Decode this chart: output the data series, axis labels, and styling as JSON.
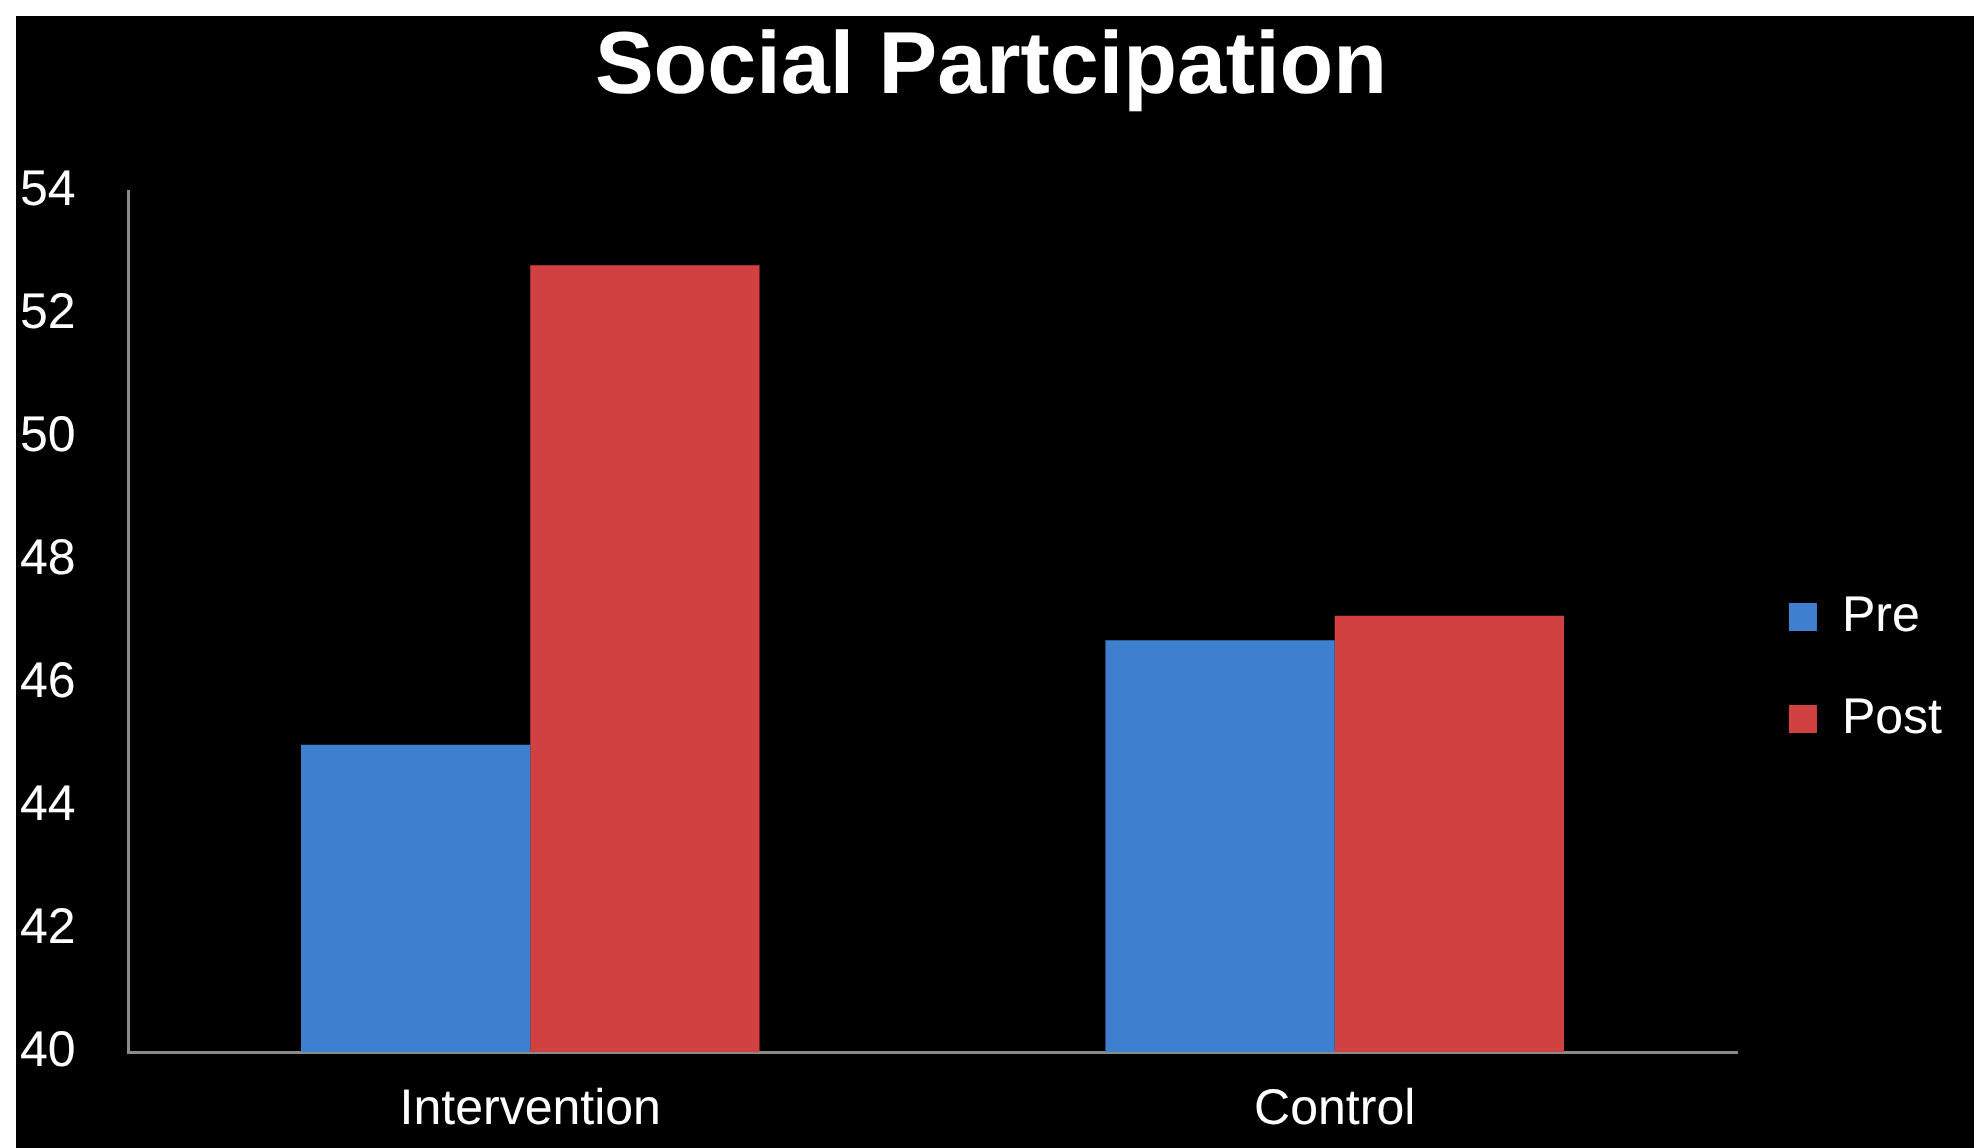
{
  "chart_data": {
    "type": "bar",
    "title": "Social Partcipation",
    "categories": [
      "Intervention",
      "Control"
    ],
    "series": [
      {
        "name": "Pre",
        "color": "#3f7fcf",
        "values": [
          45.0,
          46.7
        ]
      },
      {
        "name": "Post",
        "color": "#d24141",
        "values": [
          52.8,
          47.1
        ]
      }
    ],
    "ylim": [
      40,
      54
    ],
    "yticks": [
      40,
      42,
      44,
      46,
      48,
      50,
      52,
      54
    ],
    "grid": false,
    "legend": "right"
  }
}
